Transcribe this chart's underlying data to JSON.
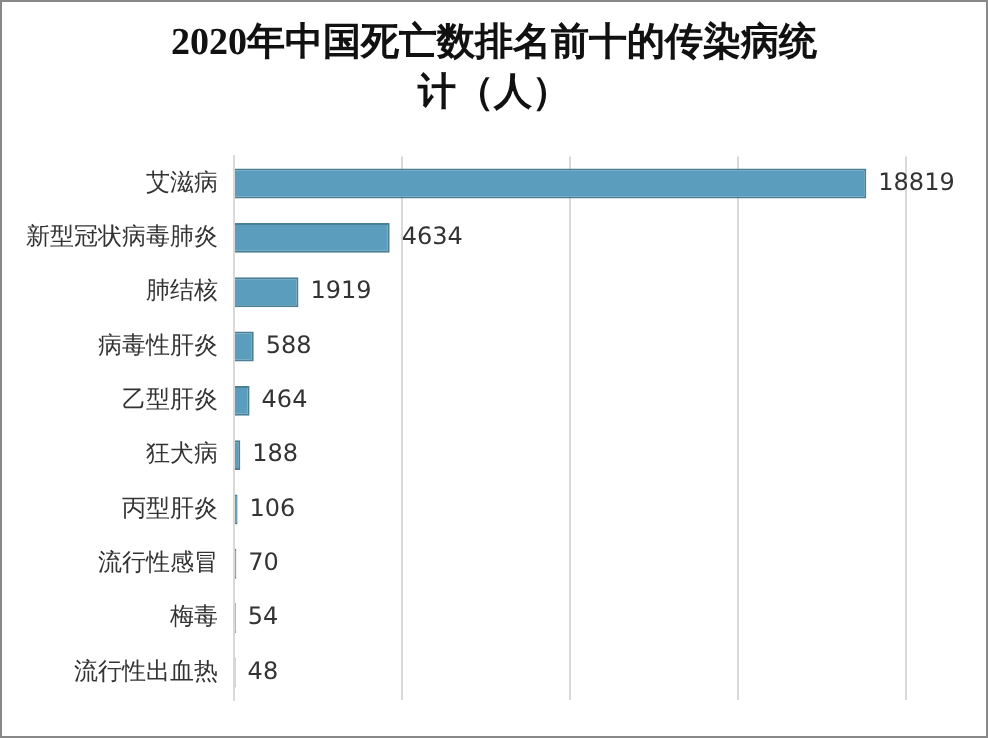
{
  "chart_data": {
    "type": "bar",
    "orientation": "horizontal",
    "title": "2020年中国死亡数排名前十的传染病统计（人）",
    "categories": [
      "艾滋病",
      "新型冠状病毒肺炎",
      "肺结核",
      "病毒性肝炎",
      "乙型肝炎",
      "狂犬病",
      "丙型肝炎",
      "流行性感冒",
      "梅毒",
      "流行性出血热"
    ],
    "values": [
      18819,
      4634,
      1919,
      588,
      464,
      188,
      106,
      70,
      54,
      48
    ],
    "color": "#5a9dbd",
    "xlim": [
      0,
      20000
    ],
    "xticks": [
      {
        "value": 0,
        "label": null
      },
      {
        "value": 5000,
        "label": null
      },
      {
        "value": 10000,
        "label": null
      },
      {
        "value": 15000,
        "label": null
      },
      {
        "value": 20000,
        "label": null
      }
    ],
    "grid": "x",
    "tick_labels": "y",
    "data_labels": true
  }
}
